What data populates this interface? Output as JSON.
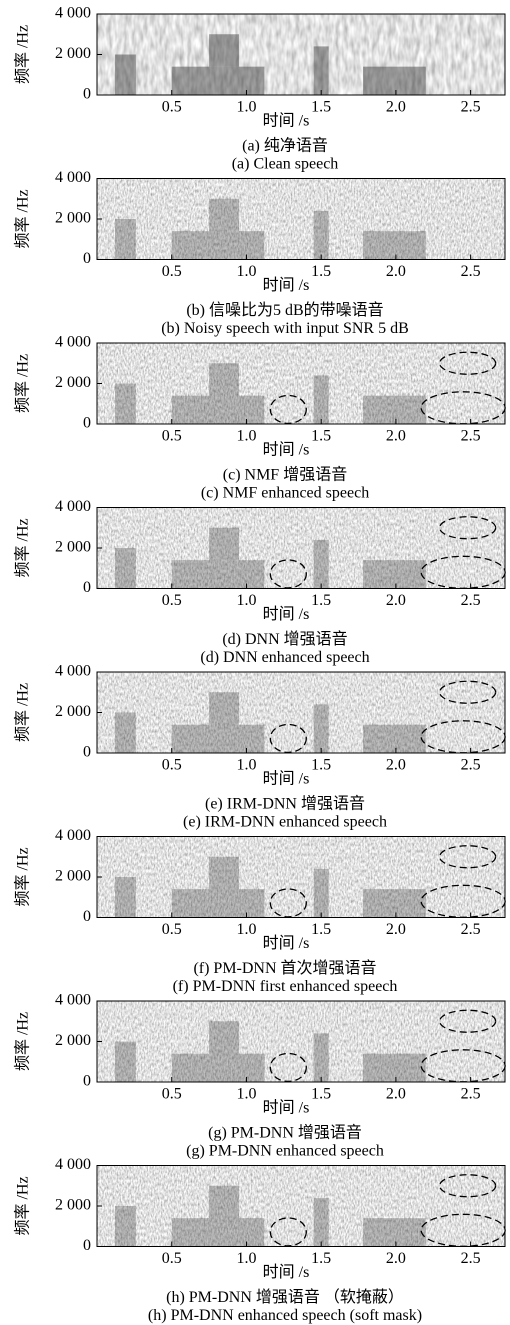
{
  "chart_data": [
    {
      "type": "spectrogram",
      "title": "(a) 纯净语音",
      "subtitle": "(a) Clean speech",
      "xlabel": "时间 /s",
      "ylabel": "频率 /Hz",
      "xlim": [
        0,
        2.73
      ],
      "xticks": [
        0.5,
        {
          "value": 1.0,
          "label": "1.0"
        },
        1.5,
        {
          "value": 2.0,
          "label": "2.0"
        },
        2.5
      ],
      "ylim": [
        0,
        4000
      ],
      "yticks": [
        {
          "value": 4000,
          "label": "4 000"
        },
        {
          "value": 2000,
          "label": "2 000"
        },
        0
      ]
    },
    {
      "type": "spectrogram",
      "title": "(b) 信噪比为5 dB的带噪语音",
      "subtitle": "(b) Noisy speech with input SNR 5 dB",
      "xlabel": "时间 /s",
      "ylabel": "频率 /Hz",
      "xlim": [
        0,
        2.73
      ],
      "xticks": [
        0.5,
        {
          "value": 1.0,
          "label": "1.0"
        },
        1.5,
        {
          "value": 2.0,
          "label": "2.0"
        },
        2.5
      ],
      "ylim": [
        0,
        4000
      ],
      "yticks": [
        {
          "value": 4000,
          "label": "4 000"
        },
        {
          "value": 2000,
          "label": "2 000"
        },
        0
      ]
    },
    {
      "type": "spectrogram",
      "title": "(c) NMF 增强语音",
      "subtitle": "(c) NMF enhanced speech",
      "xlabel": "时间 /s",
      "ylabel": "频率 /Hz",
      "xlim": [
        0,
        2.73
      ],
      "xticks": [
        0.5,
        {
          "value": 1.0,
          "label": "1.0"
        },
        1.5,
        {
          "value": 2.0,
          "label": "2.0"
        },
        2.5
      ],
      "ylim": [
        0,
        4000
      ],
      "yticks": [
        {
          "value": 4000,
          "label": "4 000"
        },
        {
          "value": 2000,
          "label": "2 000"
        },
        0
      ]
    },
    {
      "type": "spectrogram",
      "title": "(d) DNN 增强语音",
      "subtitle": "(d) DNN enhanced speech",
      "xlabel": "时间 /s",
      "ylabel": "频率 /Hz",
      "xlim": [
        0,
        2.73
      ],
      "xticks": [
        0.5,
        {
          "value": 1.0,
          "label": "1.0"
        },
        1.5,
        {
          "value": 2.0,
          "label": "2.0"
        },
        2.5
      ],
      "ylim": [
        0,
        4000
      ],
      "yticks": [
        {
          "value": 4000,
          "label": "4 000"
        },
        {
          "value": 2000,
          "label": "2 000"
        },
        0
      ]
    },
    {
      "type": "spectrogram",
      "title": "(e) IRM-DNN 增强语音",
      "subtitle": "(e) IRM-DNN enhanced speech",
      "xlabel": "时间 /s",
      "ylabel": "频率 /Hz",
      "xlim": [
        0,
        2.73
      ],
      "xticks": [
        0.5,
        {
          "value": 1.0,
          "label": "1.0"
        },
        1.5,
        {
          "value": 2.0,
          "label": "2.0"
        },
        2.5
      ],
      "ylim": [
        0,
        4000
      ],
      "yticks": [
        {
          "value": 4000,
          "label": "4 000"
        },
        {
          "value": 2000,
          "label": "2 000"
        },
        0
      ]
    },
    {
      "type": "spectrogram",
      "title": "(f) PM-DNN 首次增强语音",
      "subtitle": "(f) PM-DNN first enhanced speech",
      "xlabel": "时间 /s",
      "ylabel": "频率 /Hz",
      "xlim": [
        0,
        2.73
      ],
      "xticks": [
        0.5,
        {
          "value": 1.0,
          "label": "1.0"
        },
        1.5,
        {
          "value": 2.0,
          "label": "2.0"
        },
        2.5
      ],
      "ylim": [
        0,
        4000
      ],
      "yticks": [
        {
          "value": 4000,
          "label": "4 000"
        },
        {
          "value": 2000,
          "label": "2 000"
        },
        0
      ]
    },
    {
      "type": "spectrogram",
      "title": "(g) PM-DNN 增强语音",
      "subtitle": "(g) PM-DNN enhanced speech",
      "xlabel": "时间 /s",
      "ylabel": "频率 /Hz",
      "xlim": [
        0,
        2.73
      ],
      "xticks": [
        0.5,
        {
          "value": 1.0,
          "label": "1.0"
        },
        1.5,
        {
          "value": 2.0,
          "label": "2.0"
        },
        2.5
      ],
      "ylim": [
        0,
        4000
      ],
      "yticks": [
        {
          "value": 4000,
          "label": "4 000"
        },
        {
          "value": 2000,
          "label": "2 000"
        },
        0
      ]
    },
    {
      "type": "spectrogram",
      "title": "(h) PM-DNN 增强语音 （软掩蔽）",
      "subtitle": "(h) PM-DNN enhanced speech (soft mask)",
      "xlabel": "时间 /s",
      "ylabel": "频率 /Hz",
      "xlim": [
        0,
        2.73
      ],
      "xticks": [
        0.5,
        {
          "value": 1.0,
          "label": "1.0"
        },
        1.5,
        {
          "value": 2.0,
          "label": "2.0"
        },
        2.5
      ],
      "ylim": [
        0,
        4000
      ],
      "yticks": [
        {
          "value": 4000,
          "label": "4 000"
        },
        {
          "value": 2000,
          "label": "2 000"
        },
        0
      ]
    }
  ]
}
